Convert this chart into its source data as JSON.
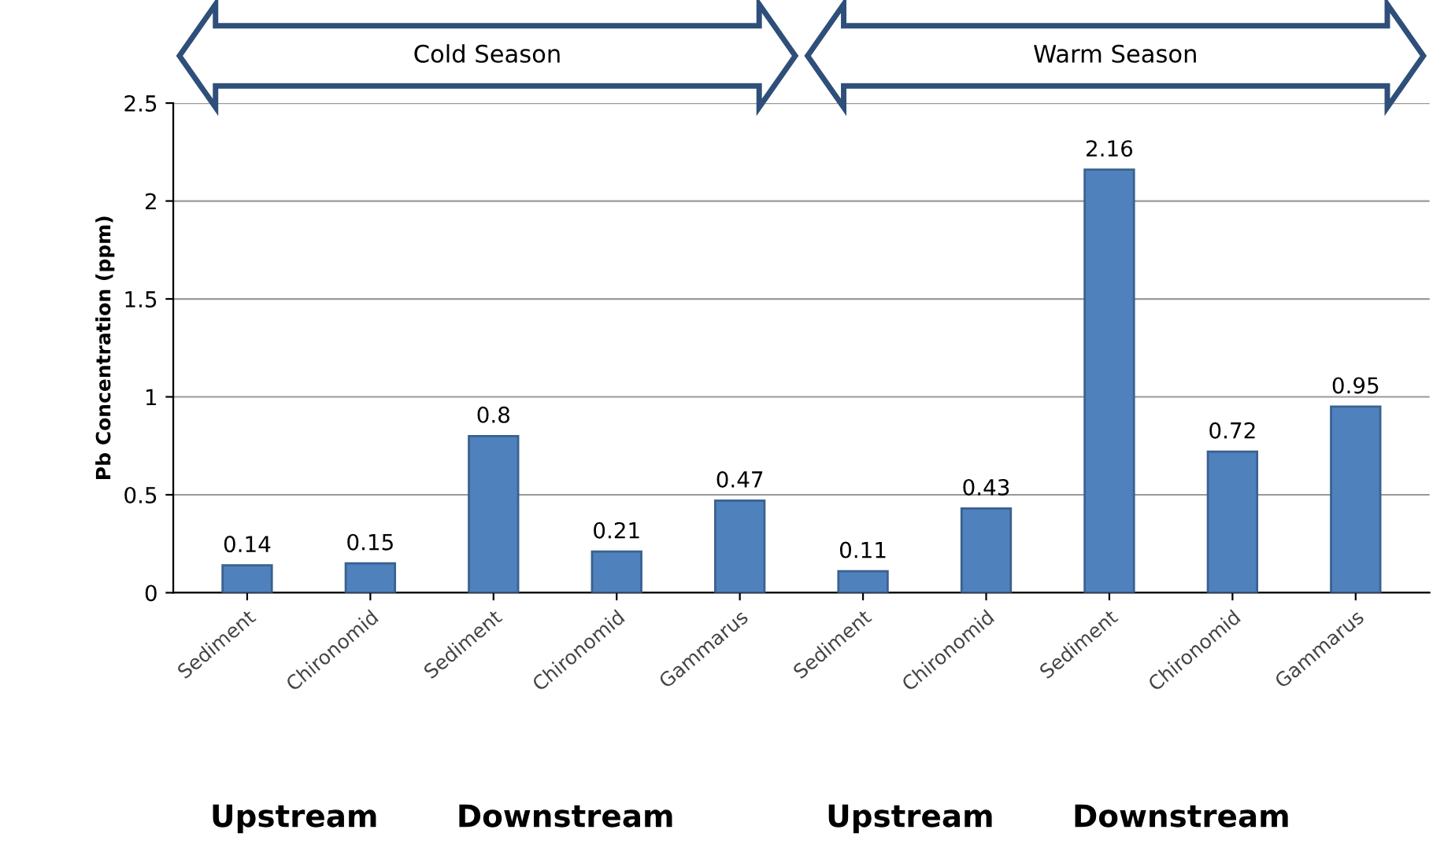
{
  "chart_data": {
    "type": "bar",
    "ylabel": "Pb Concentration (ppm)",
    "categories": [
      "Sediment",
      "Chironomid",
      "Sediment",
      "Chironomid",
      "Gammarus",
      "Sediment",
      "Chironomid",
      "Sediment",
      "Chironomid",
      "Gammarus"
    ],
    "values": [
      0.14,
      0.15,
      0.8,
      0.21,
      0.47,
      0.11,
      0.43,
      2.16,
      0.72,
      0.95
    ],
    "color": "#4f81bd",
    "data_labels": true,
    "ylim": [
      0,
      2.5
    ],
    "yticks": [
      0,
      0.5,
      1,
      1.5,
      2,
      2.5
    ],
    "grid": "y",
    "legend": false,
    "annotations": [
      "Cold Season",
      "Warm Season",
      "Upstream",
      "Downstream",
      "Upstream",
      "Downstream"
    ]
  }
}
